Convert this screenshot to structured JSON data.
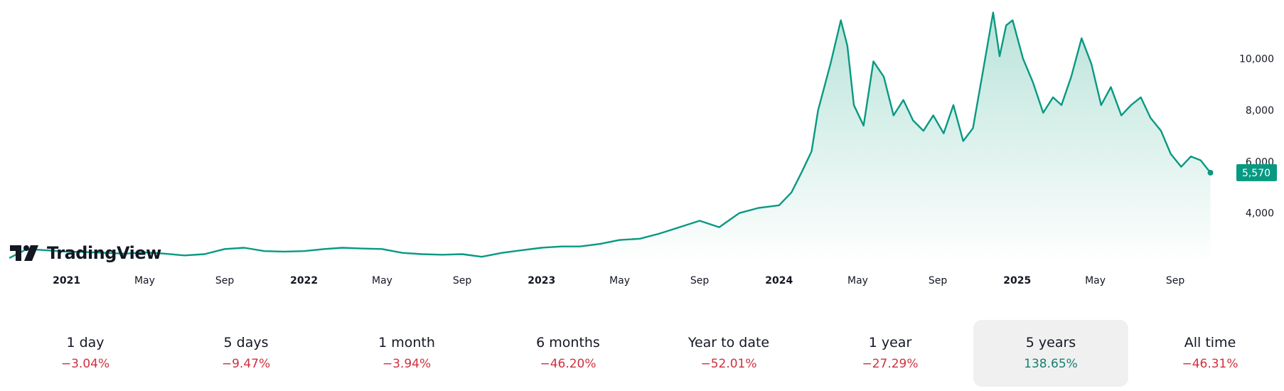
{
  "brand": {
    "name": "TradingView"
  },
  "colors": {
    "line": "#089981",
    "fill_top": "#b9e3d9",
    "fill_bottom": "#ffffff",
    "negative": "#d0303e",
    "positive": "#16806f",
    "price_tag": "#089981",
    "selected_bg": "#f0f0f0"
  },
  "price_tag": {
    "value": "5,570"
  },
  "periods": [
    {
      "label": "1 day",
      "change": "−3.04%",
      "direction": "negative",
      "selected": false
    },
    {
      "label": "5 days",
      "change": "−9.47%",
      "direction": "negative",
      "selected": false
    },
    {
      "label": "1 month",
      "change": "−3.94%",
      "direction": "negative",
      "selected": false
    },
    {
      "label": "6 months",
      "change": "−46.20%",
      "direction": "negative",
      "selected": false
    },
    {
      "label": "Year to date",
      "change": "−52.01%",
      "direction": "negative",
      "selected": false
    },
    {
      "label": "1 year",
      "change": "−27.29%",
      "direction": "negative",
      "selected": false
    },
    {
      "label": "5 years",
      "change": "138.65%",
      "direction": "positive",
      "selected": true
    },
    {
      "label": "All time",
      "change": "−46.31%",
      "direction": "negative",
      "selected": false
    }
  ],
  "chart_data": {
    "type": "area",
    "x_ticks": [
      {
        "label": "2021",
        "date": "2021-01-01",
        "bold": true
      },
      {
        "label": "May",
        "date": "2021-05-01",
        "bold": false
      },
      {
        "label": "Sep",
        "date": "2021-09-01",
        "bold": false
      },
      {
        "label": "2022",
        "date": "2022-01-01",
        "bold": true
      },
      {
        "label": "May",
        "date": "2022-05-01",
        "bold": false
      },
      {
        "label": "Sep",
        "date": "2022-09-01",
        "bold": false
      },
      {
        "label": "2023",
        "date": "2023-01-01",
        "bold": true
      },
      {
        "label": "May",
        "date": "2023-05-01",
        "bold": false
      },
      {
        "label": "Sep",
        "date": "2023-09-01",
        "bold": false
      },
      {
        "label": "2024",
        "date": "2024-01-01",
        "bold": true
      },
      {
        "label": "May",
        "date": "2024-05-01",
        "bold": false
      },
      {
        "label": "Sep",
        "date": "2024-09-01",
        "bold": false
      },
      {
        "label": "2025",
        "date": "2025-01-01",
        "bold": true
      },
      {
        "label": "May",
        "date": "2025-05-01",
        "bold": false
      },
      {
        "label": "Sep",
        "date": "2025-09-01",
        "bold": false
      }
    ],
    "y_ticks": [
      {
        "label": "4,000",
        "value": 4000
      },
      {
        "label": "6,000",
        "value": 6000
      },
      {
        "label": "8,000",
        "value": 8000
      },
      {
        "label": "10,000",
        "value": 10000
      }
    ],
    "ylim": [
      2000,
      11900
    ],
    "xlim": [
      "2020-10-06",
      "2025-11-24"
    ],
    "grid": false,
    "legend": "none",
    "last_value": 5570,
    "series": [
      {
        "points": [
          [
            "2020-10-05",
            2250
          ],
          [
            "2020-11-01",
            2600
          ],
          [
            "2020-12-01",
            2550
          ],
          [
            "2021-01-01",
            2500
          ],
          [
            "2021-02-01",
            2480
          ],
          [
            "2021-03-01",
            2450
          ],
          [
            "2021-04-01",
            2420
          ],
          [
            "2021-05-01",
            2470
          ],
          [
            "2021-06-01",
            2420
          ],
          [
            "2021-07-01",
            2350
          ],
          [
            "2021-08-01",
            2400
          ],
          [
            "2021-09-01",
            2600
          ],
          [
            "2021-10-01",
            2650
          ],
          [
            "2021-11-01",
            2520
          ],
          [
            "2021-12-01",
            2500
          ],
          [
            "2022-01-01",
            2520
          ],
          [
            "2022-02-01",
            2600
          ],
          [
            "2022-03-01",
            2650
          ],
          [
            "2022-04-01",
            2620
          ],
          [
            "2022-05-01",
            2600
          ],
          [
            "2022-06-01",
            2450
          ],
          [
            "2022-07-01",
            2400
          ],
          [
            "2022-08-01",
            2380
          ],
          [
            "2022-09-01",
            2400
          ],
          [
            "2022-10-01",
            2300
          ],
          [
            "2022-11-01",
            2450
          ],
          [
            "2022-12-01",
            2550
          ],
          [
            "2023-01-01",
            2650
          ],
          [
            "2023-02-01",
            2700
          ],
          [
            "2023-03-01",
            2700
          ],
          [
            "2023-04-01",
            2800
          ],
          [
            "2023-05-01",
            2950
          ],
          [
            "2023-06-01",
            3000
          ],
          [
            "2023-07-01",
            3200
          ],
          [
            "2023-08-01",
            3450
          ],
          [
            "2023-09-01",
            3700
          ],
          [
            "2023-10-01",
            3450
          ],
          [
            "2023-11-01",
            4000
          ],
          [
            "2023-12-01",
            4200
          ],
          [
            "2024-01-01",
            4300
          ],
          [
            "2024-01-20",
            4800
          ],
          [
            "2024-02-05",
            5600
          ],
          [
            "2024-02-20",
            6400
          ],
          [
            "2024-03-01",
            8000
          ],
          [
            "2024-03-20",
            9800
          ],
          [
            "2024-04-05",
            11500
          ],
          [
            "2024-04-15",
            10500
          ],
          [
            "2024-04-25",
            8200
          ],
          [
            "2024-05-10",
            7400
          ],
          [
            "2024-05-25",
            9900
          ],
          [
            "2024-06-10",
            9300
          ],
          [
            "2024-06-25",
            7800
          ],
          [
            "2024-07-10",
            8400
          ],
          [
            "2024-07-25",
            7600
          ],
          [
            "2024-08-10",
            7200
          ],
          [
            "2024-08-25",
            7800
          ],
          [
            "2024-09-10",
            7100
          ],
          [
            "2024-09-25",
            8200
          ],
          [
            "2024-10-10",
            6800
          ],
          [
            "2024-10-25",
            7300
          ],
          [
            "2024-11-10",
            9600
          ],
          [
            "2024-11-25",
            11800
          ],
          [
            "2024-12-05",
            10100
          ],
          [
            "2024-12-15",
            11300
          ],
          [
            "2024-12-25",
            11500
          ],
          [
            "2025-01-10",
            10000
          ],
          [
            "2025-01-25",
            9100
          ],
          [
            "2025-02-10",
            7900
          ],
          [
            "2025-02-25",
            8500
          ],
          [
            "2025-03-10",
            8200
          ],
          [
            "2025-03-25",
            9300
          ],
          [
            "2025-04-10",
            10800
          ],
          [
            "2025-04-25",
            9800
          ],
          [
            "2025-05-10",
            8200
          ],
          [
            "2025-05-25",
            8900
          ],
          [
            "2025-06-10",
            7800
          ],
          [
            "2025-06-25",
            8200
          ],
          [
            "2025-07-10",
            8500
          ],
          [
            "2025-07-25",
            7700
          ],
          [
            "2025-08-10",
            7200
          ],
          [
            "2025-08-25",
            6300
          ],
          [
            "2025-09-10",
            5800
          ],
          [
            "2025-09-25",
            6200
          ],
          [
            "2025-10-10",
            6050
          ],
          [
            "2025-10-25",
            5570
          ]
        ]
      }
    ]
  }
}
